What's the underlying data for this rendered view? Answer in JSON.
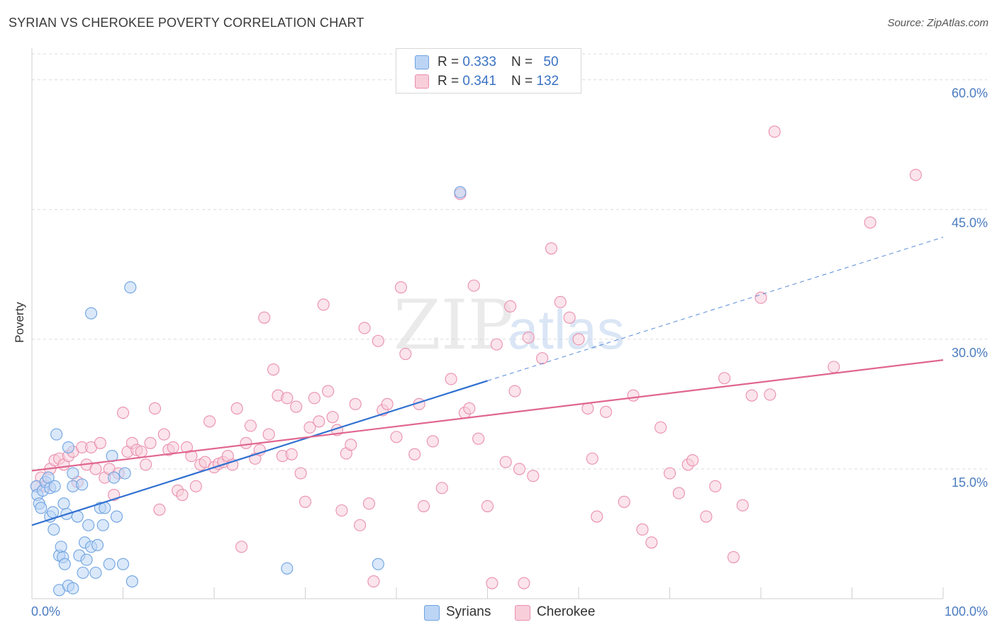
{
  "title": "SYRIAN VS CHEROKEE POVERTY CORRELATION CHART",
  "source": "Source: ZipAtlas.com",
  "watermark": {
    "zip": "ZIP",
    "atlas": "atlas"
  },
  "legend_stats": [
    {
      "r_label": "R = ",
      "r": "0.333",
      "n_label": "N = ",
      "n": "50",
      "color": "#a9c8ef"
    },
    {
      "r_label": "R = ",
      "r": "0.341",
      "n_label": "N = ",
      "n": "132",
      "color": "#f5b8cc"
    }
  ],
  "chart_data": {
    "type": "scatter",
    "xlabel": "",
    "ylabel": "Poverty",
    "xlim": [
      0,
      100
    ],
    "ylim": [
      0,
      63
    ],
    "x_tick_labels": {
      "left": "0.0%",
      "right": "100.0%"
    },
    "y_ticks": [
      15,
      30,
      45,
      60
    ],
    "y_tick_labels": [
      "15.0%",
      "30.0%",
      "45.0%",
      "60.0%"
    ],
    "grid": true,
    "series": [
      {
        "name": "Syrians",
        "color": "#6fa3e0",
        "fill": "#bcd5f5",
        "trend": {
          "x1": 0,
          "y1": 8.5,
          "x2": 50,
          "y2": 25.2,
          "dash_to_x": 100,
          "dash_to_y": 41.8,
          "color": "#2f6fd0"
        },
        "points": [
          [
            0.5,
            13
          ],
          [
            0.6,
            12
          ],
          [
            0.8,
            11
          ],
          [
            1,
            10.5
          ],
          [
            1.2,
            12.5
          ],
          [
            1.5,
            13.5
          ],
          [
            1.8,
            14
          ],
          [
            2,
            12.8
          ],
          [
            2,
            9.5
          ],
          [
            2.3,
            10
          ],
          [
            2.4,
            8
          ],
          [
            2.5,
            13
          ],
          [
            3,
            1
          ],
          [
            3,
            5
          ],
          [
            3.2,
            6
          ],
          [
            3.4,
            4.8
          ],
          [
            3.6,
            4
          ],
          [
            3.8,
            9.8
          ],
          [
            4,
            1.5
          ],
          [
            4.5,
            1.2
          ],
          [
            4.5,
            13
          ],
          [
            4.5,
            14.5
          ],
          [
            5,
            9.5
          ],
          [
            5.2,
            5
          ],
          [
            5.5,
            13.2
          ],
          [
            5.6,
            3
          ],
          [
            5.8,
            6.5
          ],
          [
            6,
            4.5
          ],
          [
            6.2,
            8.5
          ],
          [
            6.5,
            6
          ],
          [
            7,
            3
          ],
          [
            7.2,
            6.2
          ],
          [
            7.5,
            10.5
          ],
          [
            7.8,
            8.5
          ],
          [
            8,
            10.5
          ],
          [
            8.5,
            4
          ],
          [
            8.8,
            16.5
          ],
          [
            9,
            14
          ],
          [
            9.3,
            9.5
          ],
          [
            10,
            4
          ],
          [
            10.2,
            14.5
          ],
          [
            11,
            2
          ],
          [
            2.7,
            19
          ],
          [
            4,
            17.5
          ],
          [
            6.5,
            33
          ],
          [
            10.8,
            36
          ],
          [
            28,
            3.5
          ],
          [
            38,
            4
          ],
          [
            47,
            47
          ],
          [
            3.5,
            11
          ]
        ]
      },
      {
        "name": "Cherokee",
        "color": "#ea8fae",
        "fill": "#f8cedb",
        "trend": {
          "x1": 0,
          "y1": 14.8,
          "x2": 100,
          "y2": 27.6,
          "color": "#e0668f"
        },
        "points": [
          [
            0.5,
            13
          ],
          [
            1,
            14
          ],
          [
            1.5,
            13
          ],
          [
            2,
            15
          ],
          [
            2.5,
            16
          ],
          [
            3,
            16.2
          ],
          [
            3.5,
            15.5
          ],
          [
            4,
            16.5
          ],
          [
            4.5,
            17
          ],
          [
            5,
            13.5
          ],
          [
            5.5,
            17.5
          ],
          [
            6,
            15.5
          ],
          [
            6.5,
            17.5
          ],
          [
            7,
            15
          ],
          [
            7.5,
            18
          ],
          [
            8,
            14
          ],
          [
            8.5,
            15
          ],
          [
            9,
            12
          ],
          [
            9.5,
            14.5
          ],
          [
            10,
            21.5
          ],
          [
            10.5,
            17
          ],
          [
            11,
            18
          ],
          [
            11.5,
            17.2
          ],
          [
            12,
            17
          ],
          [
            12.5,
            15.5
          ],
          [
            13,
            18
          ],
          [
            13.5,
            22
          ],
          [
            14,
            10.3
          ],
          [
            14.5,
            19
          ],
          [
            15,
            17.2
          ],
          [
            15.5,
            17.5
          ],
          [
            16,
            12.5
          ],
          [
            16.5,
            12
          ],
          [
            17,
            17.5
          ],
          [
            17.5,
            16.5
          ],
          [
            18,
            13
          ],
          [
            18.5,
            15.5
          ],
          [
            19,
            15.8
          ],
          [
            19.5,
            20.5
          ],
          [
            20,
            15.2
          ],
          [
            20.5,
            15.6
          ],
          [
            21,
            15.8
          ],
          [
            21.5,
            16.5
          ],
          [
            22,
            15.5
          ],
          [
            22.5,
            22
          ],
          [
            23,
            6
          ],
          [
            23.5,
            18
          ],
          [
            24,
            20
          ],
          [
            24.5,
            16.2
          ],
          [
            25,
            17.2
          ],
          [
            25.5,
            32.5
          ],
          [
            26,
            19
          ],
          [
            26.5,
            26.5
          ],
          [
            27,
            23.5
          ],
          [
            27.5,
            16.5
          ],
          [
            28,
            23.2
          ],
          [
            28.5,
            16.7
          ],
          [
            29,
            22.2
          ],
          [
            29.5,
            14.5
          ],
          [
            30,
            11.2
          ],
          [
            30.5,
            19.8
          ],
          [
            31,
            23.2
          ],
          [
            31.5,
            20.5
          ],
          [
            32,
            34
          ],
          [
            32.5,
            24
          ],
          [
            33,
            21
          ],
          [
            33.5,
            19.5
          ],
          [
            34,
            10.2
          ],
          [
            34.5,
            16.8
          ],
          [
            35,
            17.8
          ],
          [
            35.5,
            22.5
          ],
          [
            36,
            8.5
          ],
          [
            36.5,
            31.3
          ],
          [
            37,
            11
          ],
          [
            37.5,
            2
          ],
          [
            38,
            29.8
          ],
          [
            38.5,
            21.8
          ],
          [
            39,
            22.5
          ],
          [
            40,
            18.7
          ],
          [
            40.5,
            36
          ],
          [
            41,
            28.3
          ],
          [
            42,
            16.7
          ],
          [
            42.5,
            22.5
          ],
          [
            43,
            10.7
          ],
          [
            44,
            18.2
          ],
          [
            45,
            12.8
          ],
          [
            46,
            25.4
          ],
          [
            47,
            46.8
          ],
          [
            47.5,
            21.5
          ],
          [
            48,
            22
          ],
          [
            48.5,
            36.2
          ],
          [
            49,
            18.5
          ],
          [
            50,
            10.7
          ],
          [
            50.5,
            1.8
          ],
          [
            51,
            29.4
          ],
          [
            52,
            15.8
          ],
          [
            52.5,
            33.8
          ],
          [
            53,
            24
          ],
          [
            53.5,
            15
          ],
          [
            54,
            1.8
          ],
          [
            54.5,
            30.2
          ],
          [
            55,
            14.2
          ],
          [
            56,
            27.8
          ],
          [
            57,
            40.5
          ],
          [
            58,
            34.3
          ],
          [
            59,
            32.5
          ],
          [
            60,
            30
          ],
          [
            61,
            22
          ],
          [
            61.5,
            16.2
          ],
          [
            62,
            9.5
          ],
          [
            63,
            21.6
          ],
          [
            65,
            11.2
          ],
          [
            66,
            23.5
          ],
          [
            67,
            8
          ],
          [
            68,
            6.5
          ],
          [
            69,
            19.8
          ],
          [
            70,
            14.5
          ],
          [
            71,
            12.2
          ],
          [
            72,
            15.5
          ],
          [
            72.5,
            16
          ],
          [
            74,
            9.5
          ],
          [
            75,
            13
          ],
          [
            76,
            25.5
          ],
          [
            77,
            4.8
          ],
          [
            78,
            10.8
          ],
          [
            79,
            23.5
          ],
          [
            80,
            34.8
          ],
          [
            81,
            23.6
          ],
          [
            81.5,
            54
          ],
          [
            88,
            26.8
          ],
          [
            92,
            43.5
          ],
          [
            97,
            49
          ]
        ]
      }
    ]
  }
}
